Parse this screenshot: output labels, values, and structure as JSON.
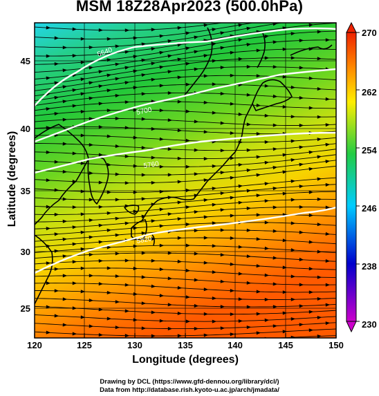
{
  "title": "MSM 18Z28Apr2023 (500.0hPa)",
  "x_axis": {
    "label": "Longitude (degrees)",
    "ticks": [
      "120",
      "125",
      "130",
      "135",
      "140",
      "145",
      "150"
    ]
  },
  "y_axis": {
    "label": "Latitude  (degrees)",
    "ticks": [
      "25",
      "30",
      "35",
      "40",
      "45"
    ]
  },
  "colorbar": {
    "ticks": [
      "230",
      "238",
      "246",
      "254",
      "262",
      "270"
    ],
    "colors": [
      "#cc00cc",
      "#0000cc",
      "#00ccff",
      "#22cc44",
      "#ffee00",
      "#ff8800",
      "#ee2200"
    ]
  },
  "credits": {
    "line1": "Drawing by DCL (https://www.gfd-dennou.org/library/dcl/)",
    "line2": "Data from http://database.rish.kyoto-u.ac.jp/arch/jmadata/"
  },
  "contour_labels": [
    "5640",
    "5700",
    "5760",
    "5820"
  ],
  "colors": {
    "field_north": "#33ccee",
    "field_mid": "#22cc44",
    "field_south": "#ff6600",
    "contour": "#ffffff",
    "streamline": "#000000"
  }
}
